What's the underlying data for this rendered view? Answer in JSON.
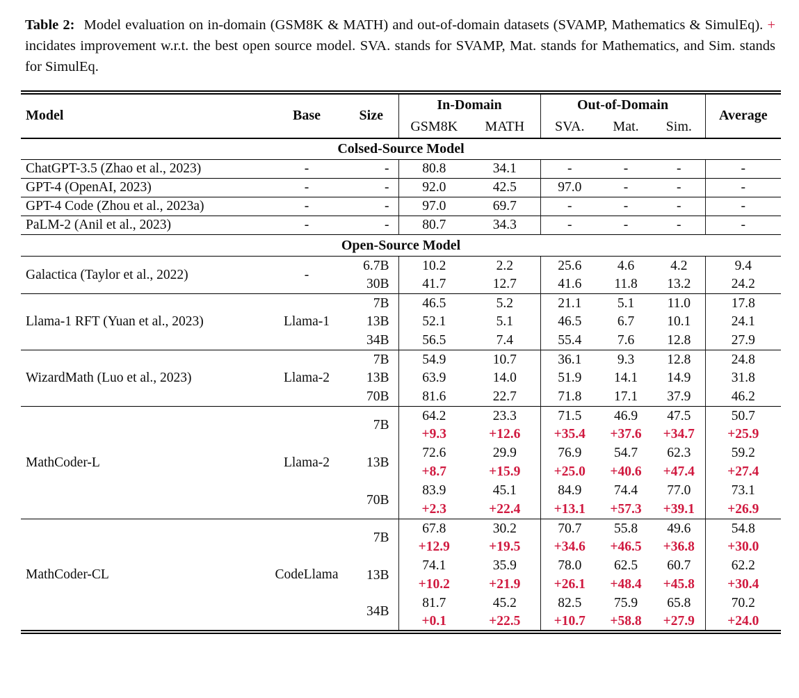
{
  "colors": {
    "accent_red": "#d0193f",
    "text": "#0c0c0c"
  },
  "caption": {
    "label": "Table 2:",
    "text_before_plus": "Model evaluation on in-domain (GSM8K & MATH) and out-of-domain datasets (SVAMP, Mathematics & SimulEq).",
    "plus_sign": "+",
    "text_after_plus": "incidates improvement w.r.t. the best open source model. SVA. stands for SVAMP, Mat. stands for Mathematics, and Sim. stands for SimulEq."
  },
  "table": {
    "header": {
      "model": "Model",
      "base": "Base",
      "size": "Size",
      "in_domain": "In-Domain",
      "out_of_domain": "Out-of-Domain",
      "average": "Average",
      "in_domain_cols": [
        "GSM8K",
        "MATH"
      ],
      "out_of_domain_cols": [
        "SVA.",
        "Mat.",
        "Sim."
      ]
    },
    "sections": [
      {
        "title": "Colsed-Source Model",
        "groups": [
          {
            "model": "ChatGPT-3.5 (Zhao et al., 2023)",
            "base": "-",
            "rows": [
              {
                "size": "-",
                "values": [
                  "80.8",
                  "34.1",
                  "-",
                  "-",
                  "-",
                  "-"
                ]
              }
            ]
          },
          {
            "model": "GPT-4 (OpenAI, 2023)",
            "base": "-",
            "rows": [
              {
                "size": "-",
                "values": [
                  "92.0",
                  "42.5",
                  "97.0",
                  "-",
                  "-",
                  "-"
                ]
              }
            ]
          },
          {
            "model": "GPT-4 Code (Zhou et al., 2023a)",
            "base": "-",
            "rows": [
              {
                "size": "-",
                "values": [
                  "97.0",
                  "69.7",
                  "-",
                  "-",
                  "-",
                  "-"
                ]
              }
            ]
          },
          {
            "model": "PaLM-2 (Anil et al., 2023)",
            "base": "-",
            "rows": [
              {
                "size": "-",
                "values": [
                  "80.7",
                  "34.3",
                  "-",
                  "-",
                  "-",
                  "-"
                ]
              }
            ]
          }
        ]
      },
      {
        "title": "Open-Source Model",
        "groups": [
          {
            "model": "Galactica (Taylor et al., 2022)",
            "base": "-",
            "rows": [
              {
                "size": "6.7B",
                "values": [
                  "10.2",
                  "2.2",
                  "25.6",
                  "4.6",
                  "4.2",
                  "9.4"
                ]
              },
              {
                "size": "30B",
                "values": [
                  "41.7",
                  "12.7",
                  "41.6",
                  "11.8",
                  "13.2",
                  "24.2"
                ]
              }
            ]
          },
          {
            "model": "Llama-1 RFT (Yuan et al., 2023)",
            "base": "Llama-1",
            "rows": [
              {
                "size": "7B",
                "values": [
                  "46.5",
                  "5.2",
                  "21.1",
                  "5.1",
                  "11.0",
                  "17.8"
                ]
              },
              {
                "size": "13B",
                "values": [
                  "52.1",
                  "5.1",
                  "46.5",
                  "6.7",
                  "10.1",
                  "24.1"
                ]
              },
              {
                "size": "34B",
                "values": [
                  "56.5",
                  "7.4",
                  "55.4",
                  "7.6",
                  "12.8",
                  "27.9"
                ]
              }
            ]
          },
          {
            "model": "WizardMath (Luo et al., 2023)",
            "base": "Llama-2",
            "rows": [
              {
                "size": "7B",
                "values": [
                  "54.9",
                  "10.7",
                  "36.1",
                  "9.3",
                  "12.8",
                  "24.8"
                ]
              },
              {
                "size": "13B",
                "values": [
                  "63.9",
                  "14.0",
                  "51.9",
                  "14.1",
                  "14.9",
                  "31.8"
                ]
              },
              {
                "size": "70B",
                "values": [
                  "81.6",
                  "22.7",
                  "71.8",
                  "17.1",
                  "37.9",
                  "46.2"
                ]
              }
            ]
          },
          {
            "model": "MathCoder-L",
            "base": "Llama-2",
            "rows": [
              {
                "size": "7B",
                "values": [
                  "64.2",
                  "23.3",
                  "71.5",
                  "46.9",
                  "47.5",
                  "50.7"
                ],
                "deltas": [
                  "+9.3",
                  "+12.6",
                  "+35.4",
                  "+37.6",
                  "+34.7",
                  "+25.9"
                ]
              },
              {
                "size": "13B",
                "values": [
                  "72.6",
                  "29.9",
                  "76.9",
                  "54.7",
                  "62.3",
                  "59.2"
                ],
                "deltas": [
                  "+8.7",
                  "+15.9",
                  "+25.0",
                  "+40.6",
                  "+47.4",
                  "+27.4"
                ]
              },
              {
                "size": "70B",
                "values": [
                  "83.9",
                  "45.1",
                  "84.9",
                  "74.4",
                  "77.0",
                  "73.1"
                ],
                "deltas": [
                  "+2.3",
                  "+22.4",
                  "+13.1",
                  "+57.3",
                  "+39.1",
                  "+26.9"
                ]
              }
            ]
          },
          {
            "model": "MathCoder-CL",
            "base": "CodeLlama",
            "rows": [
              {
                "size": "7B",
                "values": [
                  "67.8",
                  "30.2",
                  "70.7",
                  "55.8",
                  "49.6",
                  "54.8"
                ],
                "deltas": [
                  "+12.9",
                  "+19.5",
                  "+34.6",
                  "+46.5",
                  "+36.8",
                  "+30.0"
                ]
              },
              {
                "size": "13B",
                "values": [
                  "74.1",
                  "35.9",
                  "78.0",
                  "62.5",
                  "60.7",
                  "62.2"
                ],
                "deltas": [
                  "+10.2",
                  "+21.9",
                  "+26.1",
                  "+48.4",
                  "+45.8",
                  "+30.4"
                ]
              },
              {
                "size": "34B",
                "values": [
                  "81.7",
                  "45.2",
                  "82.5",
                  "75.9",
                  "65.8",
                  "70.2"
                ],
                "deltas": [
                  "+0.1",
                  "+22.5",
                  "+10.7",
                  "+58.8",
                  "+27.9",
                  "+24.0"
                ]
              }
            ]
          }
        ]
      }
    ]
  }
}
